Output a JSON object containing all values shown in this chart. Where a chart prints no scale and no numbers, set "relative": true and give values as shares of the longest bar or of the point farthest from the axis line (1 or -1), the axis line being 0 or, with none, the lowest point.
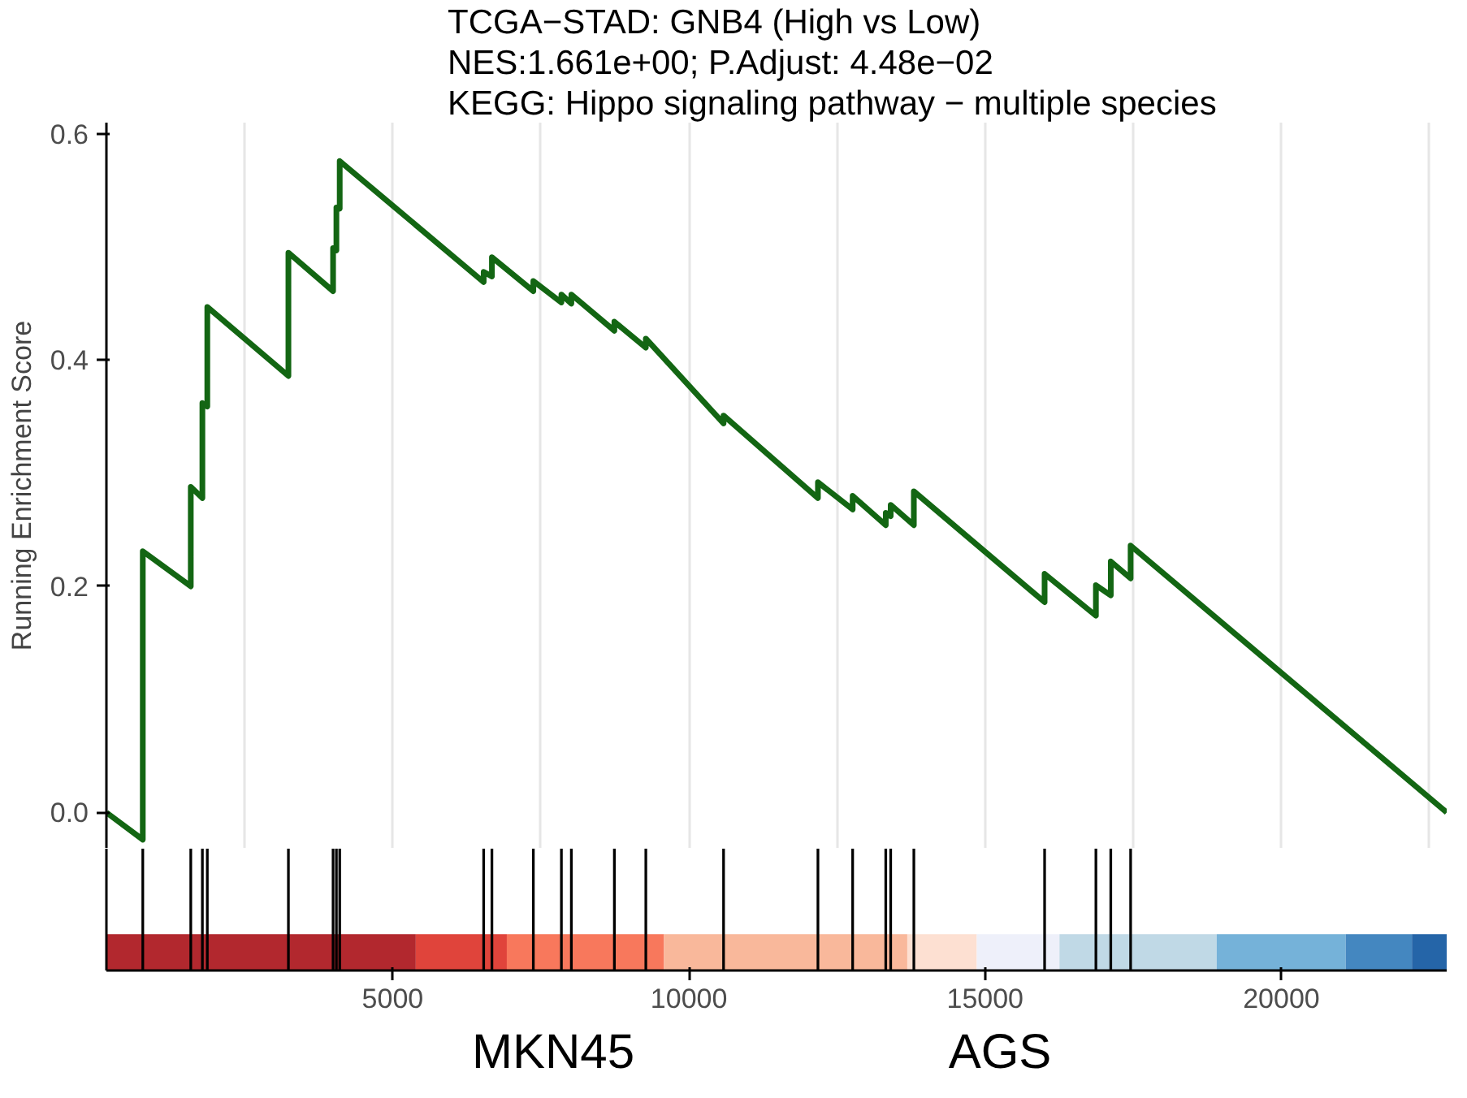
{
  "chart_data": [
    {
      "type": "line",
      "title": "TCGA−STAD: GNB4 (High vs Low)",
      "subtitle": "NES:1.661e+00; P.Adjust: 4.48e−02",
      "annotations": [
        "KEGG: Hippo signaling pathway − multiple species"
      ],
      "ylabel": "Running Enrichment Score",
      "ylim": [
        -0.032,
        0.61
      ],
      "yticks": [
        {
          "value": 0,
          "label": "0.0"
        },
        0.2,
        0.4,
        0.6
      ],
      "xticks": [
        {
          "value": 2500,
          "label": null
        },
        5000,
        {
          "value": 7500,
          "label": null
        },
        10000,
        {
          "value": 12500,
          "label": null
        },
        15000,
        {
          "value": 17500,
          "label": null
        },
        20000,
        {
          "value": 22500,
          "label": null
        }
      ],
      "tick_labels": "y",
      "grid": "x",
      "marker": "none",
      "line_style": "solid",
      "series": [
        {
          "color": "#136613",
          "x": [
            168,
            782,
            782,
            1592,
            1592,
            1788,
            1788,
            1871,
            1871,
            3240,
            3240,
            3994,
            3994,
            4050,
            4050,
            4106,
            4106,
            6536,
            6536,
            6675,
            6675,
            7374,
            7374,
            7848,
            7848,
            8016,
            8016,
            8742,
            8742,
            9273,
            9273,
            10585,
            10585,
            12178,
            12178,
            12764,
            12764,
            13323,
            13323,
            13406,
            13406,
            13797,
            13797,
            16004,
            16004,
            16870,
            16870,
            17121,
            17121,
            17456,
            17456,
            22791
          ],
          "values": [
            0,
            -0.024,
            0.231,
            0.2,
            0.288,
            0.278,
            0.362,
            0.359,
            0.447,
            0.386,
            0.495,
            0.461,
            0.499,
            0.497,
            0.535,
            0.534,
            0.576,
            0.469,
            0.478,
            0.474,
            0.491,
            0.461,
            0.47,
            0.451,
            0.458,
            0.45,
            0.458,
            0.426,
            0.434,
            0.411,
            0.419,
            0.344,
            0.351,
            0.278,
            0.292,
            0.268,
            0.28,
            0.254,
            0.265,
            0.262,
            0.272,
            0.254,
            0.284,
            0.186,
            0.211,
            0.174,
            0.201,
            0.192,
            0.222,
            0.207,
            0.236,
            0
          ]
        }
      ]
    },
    {
      "type": "bar",
      "relative": true,
      "annotations": [
        "MKN45",
        "AGS"
      ],
      "x": [
        782,
        1592,
        1788,
        1871,
        3240,
        3994,
        4050,
        4106,
        6536,
        6675,
        7374,
        7848,
        8016,
        8742,
        9273,
        10585,
        12178,
        12764,
        13323,
        13406,
        13797,
        16004,
        16870,
        17121,
        17456
      ],
      "values": [
        1,
        1,
        1,
        1,
        1,
        1,
        1,
        1,
        1,
        1,
        1,
        1,
        1,
        1,
        1,
        1,
        1,
        1,
        1,
        1,
        1,
        1,
        1,
        1,
        1
      ],
      "color": "#000000",
      "xlim": [
        168,
        22791
      ],
      "xticks": [
        5000,
        10000,
        15000,
        20000
      ],
      "tick_labels": "x",
      "grid": false,
      "bands": [
        {
          "axis": "x",
          "from": 168,
          "to": 5390,
          "color": "#b2282e"
        },
        {
          "axis": "x",
          "from": 5390,
          "to": 6927,
          "color": "#e0443b"
        },
        {
          "axis": "x",
          "from": 6927,
          "to": 9580,
          "color": "#f8785c"
        },
        {
          "axis": "x",
          "from": 9580,
          "to": 13686,
          "color": "#f9b89b"
        },
        {
          "axis": "x",
          "from": 13686,
          "to": 14859,
          "color": "#fde0d2"
        },
        {
          "axis": "x",
          "from": 14859,
          "to": 16255,
          "color": "#eef0fa"
        },
        {
          "axis": "x",
          "from": 16255,
          "to": 18909,
          "color": "#c0d9e6"
        },
        {
          "axis": "x",
          "from": 18909,
          "to": 21087,
          "color": "#75b2d9"
        },
        {
          "axis": "x",
          "from": 21087,
          "to": 22204,
          "color": "#4487c0"
        },
        {
          "axis": "x",
          "from": 22204,
          "to": 22791,
          "color": "#2565a8"
        }
      ]
    }
  ]
}
